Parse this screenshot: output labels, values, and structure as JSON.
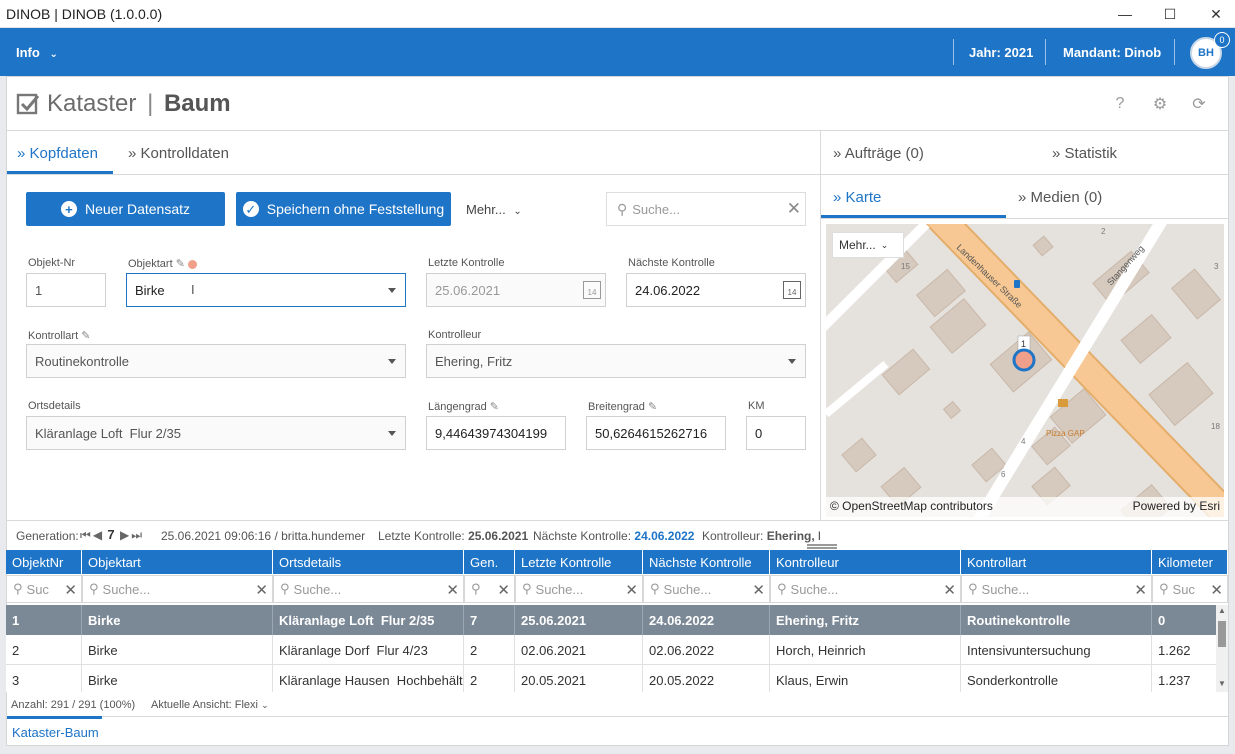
{
  "window": {
    "title": "DINOB | DINOB (1.0.0.0)",
    "minimize": "—",
    "maximize": "☐",
    "close": "✕"
  },
  "topnav": {
    "info": "Info",
    "year": "Jahr: 2021",
    "mandant": "Mandant: Dinob",
    "avatar": "BH",
    "badge": "0"
  },
  "page": {
    "title_light": "Kataster",
    "title_sep": "|",
    "title_bold": "Baum",
    "help": "?",
    "settings": "⚙",
    "refresh": "⟳"
  },
  "tabs_left": [
    {
      "label": "Kopfdaten",
      "active": true
    },
    {
      "label": "Kontrolldaten",
      "active": false
    }
  ],
  "tabs_right_top": [
    {
      "label": "Aufträge (0)"
    },
    {
      "label": "Statistik"
    }
  ],
  "tabs_right_bottom": [
    {
      "label": "Karte",
      "active": true
    },
    {
      "label": "Medien (0)"
    }
  ],
  "toolbar": {
    "new_label": "Neuer Datensatz",
    "save_label": "Speichern ohne Feststellung",
    "more_label": "Mehr...",
    "search_placeholder": "Suche..."
  },
  "form": {
    "objektnr": {
      "label": "Objekt-Nr",
      "value": "1"
    },
    "objektart": {
      "label": "Objektart",
      "value": "Birke"
    },
    "letzte": {
      "label": "Letzte Kontrolle",
      "value": "25.06.2021"
    },
    "naechste": {
      "label": "Nächste Kontrolle",
      "value": "24.06.2022"
    },
    "kontrollart": {
      "label": "Kontrollart",
      "value": "Routinekontrolle"
    },
    "kontrolleur": {
      "label": "Kontrolleur",
      "value": "Ehering, Fritz"
    },
    "ortsdetails": {
      "label": "Ortsdetails",
      "value": "Kläranlage Loft  Flur 2/35"
    },
    "laengengrad": {
      "label": "Längengrad",
      "value": "9,44643974304199"
    },
    "breitengrad": {
      "label": "Breitengrad",
      "value": "50,6264615262716"
    },
    "km": {
      "label": "KM",
      "value": "0"
    },
    "calendar_day": "14"
  },
  "map": {
    "more_label": "Mehr...",
    "street1": "Landenhauser Straße",
    "street2": "Stangenweg",
    "poi": "Pizza GAP",
    "marker_label": "1",
    "attribution": "© OpenStreetMap contributors",
    "powered": "Powered by Esri",
    "nums": [
      "2",
      "15",
      "3",
      "4",
      "6",
      "18",
      "1"
    ]
  },
  "inforow": {
    "generation_label": "Generation:",
    "generation_value": "7",
    "created": "25.06.2021 09:06:16 / britta.hundemer",
    "letzte_label": "Letzte Kontrolle:",
    "letzte_value": "25.06.2021",
    "naechste_label": "Nächste Kontrolle:",
    "naechste_value": "24.06.2022",
    "kontrolleur_label": "Kontrolleur:",
    "kontrolleur_value": "Ehering, Fr"
  },
  "grid": {
    "columns": [
      "ObjektNr",
      "Objektart",
      "Ortsdetails",
      "Gen.",
      "Letzte Kontrolle",
      "Nächste Kontrolle",
      "Kontrolleur",
      "Kontrollart",
      "Kilometer"
    ],
    "filter_placeholders": [
      "Suc",
      "Suche...",
      "Suche...",
      "",
      "Suche...",
      "Suche...",
      "Suche...",
      "Suche...",
      "Suc"
    ],
    "rows": [
      [
        "1",
        "Birke",
        "Kläranlage Loft  Flur 2/35",
        "7",
        "25.06.2021",
        "24.06.2022",
        "Ehering, Fritz",
        "Routinekontrolle",
        "0"
      ],
      [
        "2",
        "Birke",
        "Kläranlage Dorf  Flur 4/23",
        "2",
        "02.06.2021",
        "02.06.2022",
        "Horch, Heinrich",
        "Intensivuntersuchung",
        "1.262"
      ],
      [
        "3",
        "Birke",
        "Kläranlage Hausen  Hochbehälter",
        "2",
        "20.05.2021",
        "20.05.2022",
        "Klaus, Erwin",
        "Sonderkontrolle",
        "1.237"
      ]
    ]
  },
  "footer": {
    "count": "Anzahl: 291 / 291 (100%)",
    "view": "Aktuelle Ansicht: Flexi"
  },
  "bottom_tab": "Kataster-Baum",
  "colors": {
    "primary": "#1e74c6",
    "selected_row": "#7b8896",
    "marker": "#f0a08a"
  }
}
